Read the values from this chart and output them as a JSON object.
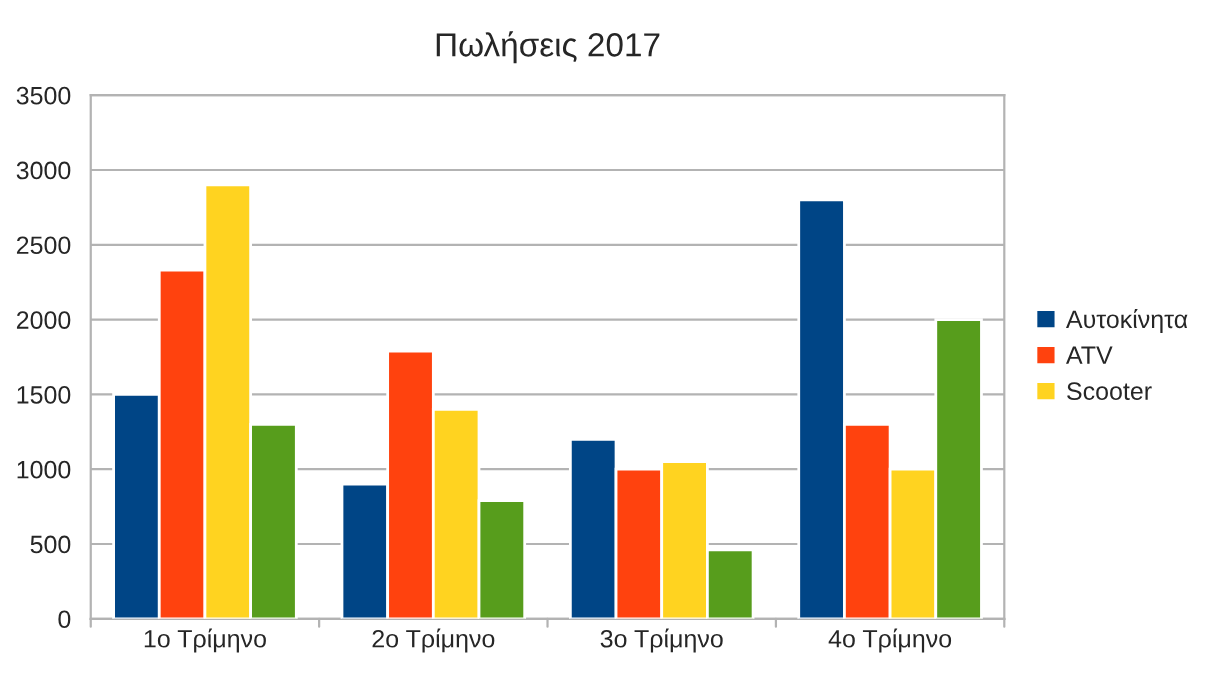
{
  "chart_data": {
    "type": "bar",
    "title": "Πωλήσεις 2017",
    "categories": [
      "1ο Τρίμηνο",
      "2ο Τρίμηνο",
      "3ο Τρίμηνο",
      "4ο Τρίμηνο"
    ],
    "series": [
      {
        "name": "Αυτοκίνητα",
        "color": "#004586",
        "values": [
          1500,
          900,
          1200,
          2800
        ]
      },
      {
        "name": "ATV",
        "color": "#ff420e",
        "values": [
          2330,
          1790,
          1000,
          1300
        ]
      },
      {
        "name": "Scooter",
        "color": "#ffd320",
        "values": [
          2900,
          1400,
          1050,
          1000
        ]
      },
      {
        "color": "#579d1c",
        "values": [
          1300,
          790,
          460,
          2000
        ]
      }
    ],
    "ylim": [
      0,
      3500
    ],
    "yticks": [
      0,
      500,
      1000,
      1500,
      2000,
      2500,
      3000,
      3500
    ],
    "grid": "y",
    "legend": "right"
  }
}
